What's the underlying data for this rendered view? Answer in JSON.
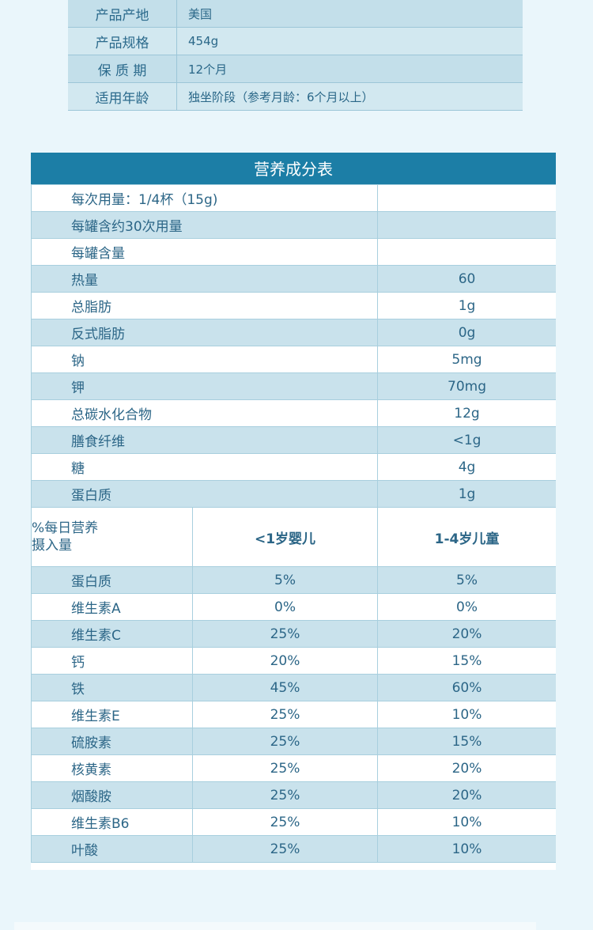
{
  "product_info": [
    {
      "label": "产品产地",
      "value": "美国"
    },
    {
      "label": "产品规格",
      "value": "454g"
    },
    {
      "label": "保 质 期",
      "value": "12个月"
    },
    {
      "label": "适用年龄",
      "value": "独坐阶段（参考月龄：6个月以上）"
    }
  ],
  "nutrition": {
    "title": "营养成分表",
    "serving_rows": [
      {
        "label": "每次用量：1/4杯（15g)",
        "value": ""
      },
      {
        "label": "每罐含约30次用量",
        "value": ""
      },
      {
        "label": "每罐含量",
        "value": ""
      }
    ],
    "nutrient_rows": [
      {
        "label": "热量",
        "value": "60"
      },
      {
        "label": "总脂肪",
        "value": "1g"
      },
      {
        "label": "反式脂肪",
        "value": "0g"
      },
      {
        "label": "钠",
        "value": "5mg"
      },
      {
        "label": "钾",
        "value": "70mg"
      },
      {
        "label": "总碳水化合物",
        "value": "12g"
      },
      {
        "label": "膳食纤维",
        "value": "<1g"
      },
      {
        "label": "糖",
        "value": "4g"
      },
      {
        "label": "蛋白质",
        "value": "1g"
      }
    ],
    "dv_header": {
      "label_line1": "%每日营养",
      "label_line2": "摄入量",
      "col1": "<1岁婴儿",
      "col2": "1-4岁儿童"
    },
    "dv_rows": [
      {
        "label": "蛋白质",
        "infant": "5%",
        "child": "5%"
      },
      {
        "label": "维生素A",
        "infant": "0%",
        "child": "0%"
      },
      {
        "label": "维生素C",
        "infant": "25%",
        "child": "20%"
      },
      {
        "label": "钙",
        "infant": "20%",
        "child": "15%"
      },
      {
        "label": "铁",
        "infant": "45%",
        "child": "60%"
      },
      {
        "label": "维生素E",
        "infant": "25%",
        "child": "10%"
      },
      {
        "label": "硫胺素",
        "infant": "25%",
        "child": "15%"
      },
      {
        "label": "核黄素",
        "infant": "25%",
        "child": "20%"
      },
      {
        "label": "烟酸胺",
        "infant": "25%",
        "child": "20%"
      },
      {
        "label": "维生素B6",
        "infant": "25%",
        "child": "10%"
      },
      {
        "label": "叶酸",
        "infant": "25%",
        "child": "10%"
      }
    ]
  },
  "colors": {
    "header_blue": "#1c7ea6",
    "row_alt": "#c9e2ec",
    "page_bg": "#eaf6fb"
  }
}
